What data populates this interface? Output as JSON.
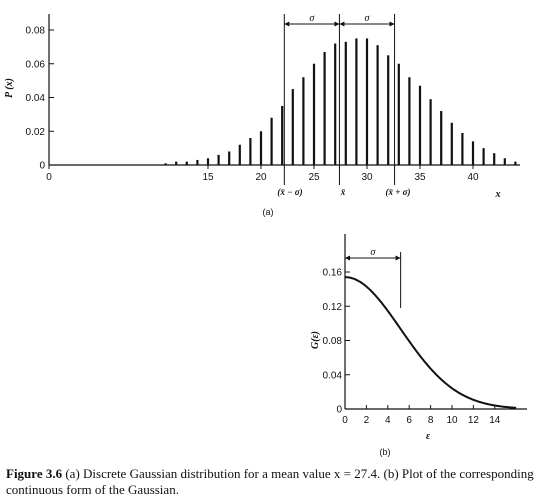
{
  "chart_data": [
    {
      "type": "bar",
      "panel_label": "(a)",
      "ylabel": "P (x)",
      "xlabel": "x",
      "xlim": [
        0,
        45
      ],
      "ylim": [
        0,
        0.08
      ],
      "xticks": [
        "0",
        "15",
        "20",
        "25",
        "30",
        "35",
        "40"
      ],
      "yticks": [
        "0",
        "0.02",
        "0.04",
        "0.06",
        "0.08"
      ],
      "annotations": {
        "mean_minus_sigma": "(x̄ − σ)",
        "mean": "x̄",
        "mean_plus_sigma": "(x̄ + σ)",
        "sigma": "σ"
      },
      "mean": 27.4,
      "sigma": 5.2,
      "x": [
        11,
        12,
        13,
        14,
        15,
        16,
        17,
        18,
        19,
        20,
        21,
        22,
        23,
        24,
        25,
        26,
        27,
        28,
        29,
        30,
        31,
        32,
        33,
        34,
        35,
        36,
        37,
        38,
        39,
        40,
        41,
        42,
        43,
        44
      ],
      "values": [
        0.001,
        0.002,
        0.002,
        0.003,
        0.004,
        0.006,
        0.008,
        0.012,
        0.016,
        0.02,
        0.028,
        0.035,
        0.045,
        0.052,
        0.06,
        0.067,
        0.072,
        0.073,
        0.075,
        0.075,
        0.071,
        0.065,
        0.06,
        0.052,
        0.047,
        0.039,
        0.032,
        0.025,
        0.019,
        0.014,
        0.01,
        0.007,
        0.004,
        0.002
      ]
    },
    {
      "type": "line",
      "panel_label": "(b)",
      "ylabel": "G(ε)",
      "xlabel": "ε",
      "xlim": [
        0,
        16
      ],
      "ylim": [
        0,
        0.16
      ],
      "xticks": [
        "0",
        "2",
        "4",
        "6",
        "8",
        "10",
        "12",
        "14"
      ],
      "yticks": [
        "0",
        "0.04",
        "0.08",
        "0.12",
        "0.16"
      ],
      "annotations": {
        "sigma": "σ"
      },
      "sigma": 5.2,
      "peak": 0.154
    }
  ],
  "caption": {
    "figure_number": "Figure 3.6",
    "text": " (a) Discrete Gaussian distribution for a mean value x = 27.4. (b) Plot of the corresponding continuous form of the Gaussian."
  }
}
